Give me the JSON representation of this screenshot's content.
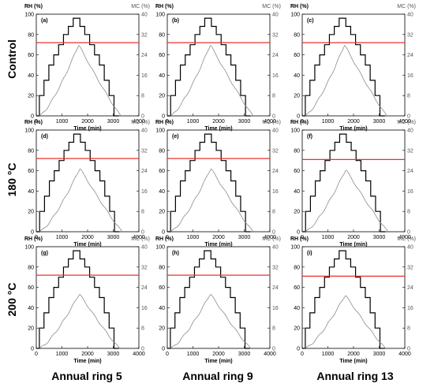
{
  "row_labels": [
    "Control",
    "180 °C",
    "200 °C"
  ],
  "col_labels": [
    "Annual ring 5",
    "Annual ring 9",
    "Annual ring 13"
  ],
  "left_axis_label": "RH (%)",
  "right_axis_label": "MC (%)",
  "x_axis_label": "Time (min)",
  "colors": {
    "rh": "#000000",
    "mc": "#8c8c8c",
    "threshold": "#e8322d"
  },
  "chart_data": [
    {
      "type": "line",
      "panel": "(a)",
      "row": "Control",
      "column": "Annual ring 5",
      "xlim": [
        0,
        4000
      ],
      "ylim_left": [
        0,
        100
      ],
      "ylim_right": [
        0,
        40
      ],
      "rh_levels": [
        0,
        20,
        35,
        50,
        60,
        70,
        80,
        88,
        96
      ],
      "rh_x": [
        0,
        120,
        300,
        490,
        680,
        870,
        1060,
        1250,
        1440,
        1700,
        1890,
        2080,
        2270,
        2460,
        2650,
        2840,
        3030,
        3220,
        3420
      ],
      "mc_peak_x": 1650,
      "mc_peak": 28,
      "mc_end_x": 3300,
      "threshold_rh": 72,
      "xticks": [
        0,
        1000,
        2000,
        3000,
        4000
      ],
      "yticks_left": [
        0,
        20,
        40,
        60,
        80,
        100
      ],
      "yticks_right": [
        0,
        8,
        16,
        24,
        32,
        40
      ]
    },
    {
      "type": "line",
      "panel": "(b)",
      "row": "Control",
      "column": "Annual ring 9",
      "xlim": [
        0,
        4000
      ],
      "ylim_left": [
        0,
        100
      ],
      "ylim_right": [
        0,
        40
      ],
      "rh_levels": [
        0,
        20,
        35,
        50,
        60,
        70,
        80,
        88,
        96
      ],
      "rh_x": [
        0,
        130,
        320,
        510,
        700,
        890,
        1080,
        1270,
        1460,
        1720,
        1910,
        2100,
        2290,
        2480,
        2670,
        2860,
        3050,
        3240,
        3430
      ],
      "mc_peak_x": 1680,
      "mc_peak": 28,
      "mc_end_x": 3350,
      "threshold_rh": 72,
      "xticks": [
        0,
        1000,
        2000,
        3000,
        4000
      ],
      "yticks_left": [
        0,
        20,
        40,
        60,
        80,
        100
      ],
      "yticks_right": [
        0,
        8,
        16,
        24,
        32,
        40
      ]
    },
    {
      "type": "line",
      "panel": "(c)",
      "row": "Control",
      "column": "Annual ring 13",
      "xlim": [
        0,
        4000
      ],
      "ylim_left": [
        0,
        100
      ],
      "ylim_right": [
        0,
        40
      ],
      "rh_levels": [
        0,
        20,
        35,
        50,
        60,
        70,
        80,
        88,
        96
      ],
      "rh_x": [
        0,
        120,
        300,
        490,
        680,
        870,
        1060,
        1250,
        1440,
        1700,
        1890,
        2080,
        2270,
        2460,
        2650,
        2840,
        3030,
        3220,
        3420
      ],
      "mc_peak_x": 1650,
      "mc_peak": 28,
      "mc_end_x": 3300,
      "threshold_rh": 72,
      "xticks": [
        0,
        1000,
        2000,
        3000,
        4000
      ],
      "yticks_left": [
        0,
        20,
        40,
        60,
        80,
        100
      ],
      "yticks_right": [
        0,
        8,
        16,
        24,
        32,
        40
      ]
    },
    {
      "type": "line",
      "panel": "(d)",
      "row": "180 °C",
      "column": "Annual ring 5",
      "xlim": [
        0,
        4000
      ],
      "ylim_left": [
        0,
        100
      ],
      "ylim_right": [
        0,
        40
      ],
      "rh_levels": [
        0,
        20,
        35,
        50,
        60,
        70,
        80,
        88,
        96
      ],
      "rh_x": [
        0,
        130,
        320,
        510,
        700,
        890,
        1080,
        1270,
        1460,
        1720,
        1910,
        2100,
        2290,
        2480,
        2670,
        2860,
        3050,
        3240,
        3440
      ],
      "mc_peak_x": 1700,
      "mc_peak": 25,
      "mc_end_x": 3350,
      "threshold_rh": 72,
      "xticks": [
        0,
        1000,
        2000,
        3000,
        4000
      ],
      "yticks_left": [
        0,
        20,
        40,
        60,
        80,
        100
      ],
      "yticks_right": [
        0,
        8,
        16,
        24,
        32,
        40
      ]
    },
    {
      "type": "line",
      "panel": "(e)",
      "row": "180 °C",
      "column": "Annual ring 9",
      "xlim": [
        0,
        4000
      ],
      "ylim_left": [
        0,
        100
      ],
      "ylim_right": [
        0,
        40
      ],
      "rh_levels": [
        0,
        20,
        35,
        50,
        60,
        70,
        80,
        88,
        96
      ],
      "rh_x": [
        0,
        130,
        320,
        510,
        700,
        890,
        1080,
        1270,
        1460,
        1720,
        1910,
        2100,
        2290,
        2480,
        2670,
        2860,
        3050,
        3240,
        3440
      ],
      "mc_peak_x": 1700,
      "mc_peak": 25,
      "mc_end_x": 3350,
      "threshold_rh": 72,
      "xticks": [
        0,
        1000,
        2000,
        3000,
        4000
      ],
      "yticks_left": [
        0,
        20,
        40,
        60,
        80,
        100
      ],
      "yticks_right": [
        0,
        8,
        16,
        24,
        32,
        40
      ]
    },
    {
      "type": "line",
      "panel": "(f)",
      "row": "180 °C",
      "column": "Annual ring 13",
      "xlim": [
        0,
        4000
      ],
      "ylim_left": [
        0,
        100
      ],
      "ylim_right": [
        0,
        40
      ],
      "rh_levels": [
        0,
        20,
        35,
        50,
        60,
        70,
        80,
        88,
        96
      ],
      "rh_x": [
        0,
        130,
        320,
        510,
        700,
        890,
        1080,
        1270,
        1460,
        1720,
        1910,
        2100,
        2290,
        2480,
        2670,
        2860,
        3050,
        3240,
        3440
      ],
      "mc_peak_x": 1700,
      "mc_peak": 24.5,
      "mc_end_x": 3350,
      "threshold_rh": 71,
      "xticks": [
        0,
        1000,
        2000,
        3000,
        4000
      ],
      "yticks_left": [
        0,
        20,
        40,
        60,
        80,
        100
      ],
      "yticks_right": [
        0,
        8,
        16,
        24,
        32,
        40
      ]
    },
    {
      "type": "line",
      "panel": "(g)",
      "row": "200 °C",
      "column": "Annual ring 5",
      "xlim": [
        0,
        4000
      ],
      "ylim_left": [
        0,
        100
      ],
      "ylim_right": [
        0,
        40
      ],
      "rh_levels": [
        0,
        20,
        35,
        50,
        60,
        70,
        80,
        88,
        96
      ],
      "rh_x": [
        0,
        120,
        300,
        490,
        680,
        870,
        1060,
        1250,
        1440,
        1700,
        1890,
        2080,
        2270,
        2460,
        2650,
        2840,
        3030,
        3220,
        3380
      ],
      "mc_peak_x": 1680,
      "mc_peak": 21.5,
      "mc_end_x": 3250,
      "threshold_rh": 72,
      "xticks": [
        0,
        1000,
        2000,
        3000,
        4000
      ],
      "yticks_left": [
        0,
        20,
        40,
        60,
        80,
        100
      ],
      "yticks_right": [
        0,
        8,
        16,
        24,
        32,
        40
      ]
    },
    {
      "type": "line",
      "panel": "(h)",
      "row": "200 °C",
      "column": "Annual ring 9",
      "xlim": [
        0,
        4000
      ],
      "ylim_left": [
        0,
        100
      ],
      "ylim_right": [
        0,
        40
      ],
      "rh_levels": [
        0,
        20,
        35,
        50,
        60,
        70,
        80,
        88,
        96
      ],
      "rh_x": [
        0,
        120,
        300,
        490,
        680,
        870,
        1060,
        1250,
        1440,
        1700,
        1890,
        2080,
        2270,
        2460,
        2650,
        2840,
        3030,
        3220,
        3380
      ],
      "mc_peak_x": 1680,
      "mc_peak": 21.5,
      "mc_end_x": 3250,
      "threshold_rh": 72,
      "xticks": [
        0,
        1000,
        2000,
        3000,
        4000
      ],
      "yticks_left": [
        0,
        20,
        40,
        60,
        80,
        100
      ],
      "yticks_right": [
        0,
        8,
        16,
        24,
        32,
        40
      ]
    },
    {
      "type": "line",
      "panel": "(i)",
      "row": "200 °C",
      "column": "Annual ring 13",
      "xlim": [
        0,
        4000
      ],
      "ylim_left": [
        0,
        100
      ],
      "ylim_right": [
        0,
        40
      ],
      "rh_levels": [
        0,
        20,
        35,
        50,
        60,
        70,
        80,
        88,
        96
      ],
      "rh_x": [
        0,
        120,
        300,
        490,
        680,
        870,
        1060,
        1250,
        1440,
        1700,
        1890,
        2080,
        2270,
        2460,
        2650,
        2840,
        3030,
        3220,
        3380
      ],
      "mc_peak_x": 1680,
      "mc_peak": 21,
      "mc_end_x": 3250,
      "threshold_rh": 71,
      "xticks": [
        0,
        1000,
        2000,
        3000,
        4000
      ],
      "yticks_left": [
        0,
        20,
        40,
        60,
        80,
        100
      ],
      "yticks_right": [
        0,
        8,
        16,
        24,
        32,
        40
      ]
    }
  ]
}
